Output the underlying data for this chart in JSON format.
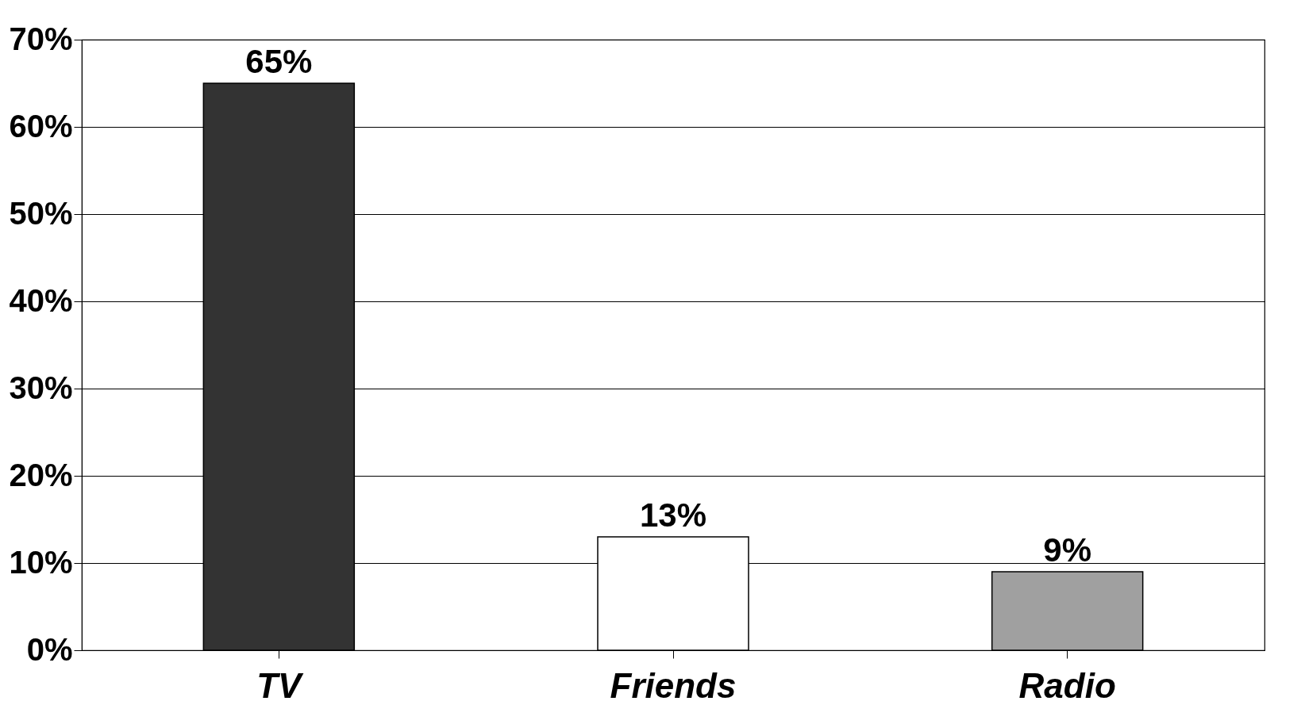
{
  "chart_data": {
    "type": "bar",
    "categories": [
      "TV",
      "Friends",
      "Radio"
    ],
    "values": [
      65,
      13,
      9
    ],
    "colors": [
      "#333333",
      "#ffffff",
      "#a0a0a0"
    ],
    "value_labels": [
      "65%",
      "13%",
      "9%"
    ],
    "ylim": [
      0,
      70
    ],
    "yticks": [
      {
        "value": 0,
        "label": "0%"
      },
      {
        "value": 10,
        "label": "10%"
      },
      {
        "value": 20,
        "label": "20%"
      },
      {
        "value": 30,
        "label": "30%"
      },
      {
        "value": 40,
        "label": "40%"
      },
      {
        "value": 50,
        "label": "50%"
      },
      {
        "value": 60,
        "label": "60%"
      },
      {
        "value": 70,
        "label": "70%"
      }
    ],
    "grid": "y"
  }
}
